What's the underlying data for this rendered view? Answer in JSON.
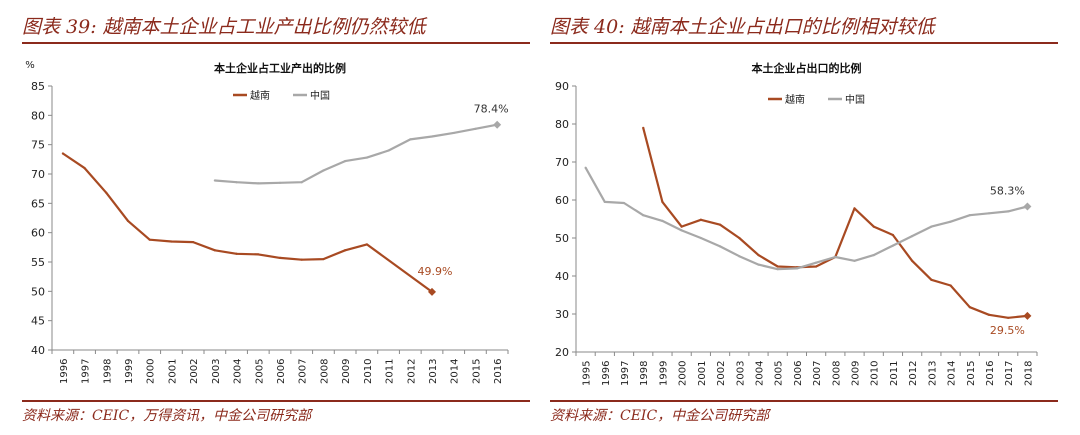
{
  "charts": [
    {
      "figure_title": "图表 39:  越南本土企业占工业产出比例仍然较低",
      "source": "资料来源：CEIC，万得资讯，中金公司研究部"
    },
    {
      "figure_title": "图表 40:  越南本土企业占出口的比例相对较低",
      "source": "资料来源：CEIC，中金公司研究部"
    }
  ],
  "chart_data": [
    {
      "type": "line",
      "title": "本土企业占工业产出的比例",
      "ylabel": "%",
      "xlabel": "",
      "ylim": [
        40,
        85
      ],
      "yticks": [
        40,
        45,
        50,
        55,
        60,
        65,
        70,
        75,
        80,
        85
      ],
      "grid": false,
      "legend_position": "top",
      "x": [
        "1996",
        "1997",
        "1998",
        "1999",
        "2000",
        "2001",
        "2002",
        "2003",
        "2004",
        "2005",
        "2006",
        "2007",
        "2008",
        "2009",
        "2010",
        "2011",
        "2012",
        "2013",
        "2014",
        "2015",
        "2016"
      ],
      "series": [
        {
          "name": "越南",
          "color": "#a84a22",
          "values": [
            73.5,
            71,
            66.8,
            62,
            58.8,
            58.5,
            58.4,
            57,
            56.4,
            56.3,
            55.7,
            55.4,
            55.5,
            57,
            58,
            null,
            null,
            49.9,
            null,
            null,
            null
          ],
          "connect": [
            [
              14,
              17
            ]
          ],
          "end_label": "49.9%",
          "end_index": 17
        },
        {
          "name": "中国",
          "color": "#a8a8a8",
          "values": [
            null,
            null,
            null,
            null,
            null,
            null,
            null,
            68.9,
            68.6,
            68.4,
            68.5,
            68.6,
            70.6,
            72.2,
            72.8,
            74,
            75.9,
            76.4,
            77.0,
            77.7,
            78.4
          ],
          "end_label": "78.4%",
          "end_index": 20
        }
      ]
    },
    {
      "type": "line",
      "title": "本土企业占出口的比例",
      "ylabel": "",
      "xlabel": "",
      "ylim": [
        20,
        90
      ],
      "yticks": [
        20,
        30,
        40,
        50,
        60,
        70,
        80,
        90
      ],
      "grid": false,
      "legend_position": "top",
      "x": [
        "1995",
        "1996",
        "1997",
        "1998",
        "1999",
        "2000",
        "2001",
        "2002",
        "2003",
        "2004",
        "2005",
        "2006",
        "2007",
        "2008",
        "2009",
        "2010",
        "2011",
        "2012",
        "2013",
        "2014",
        "2015",
        "2016",
        "2017",
        "2018"
      ],
      "series": [
        {
          "name": "越南",
          "color": "#a84a22",
          "values": [
            null,
            null,
            null,
            79,
            59.5,
            53,
            54.8,
            53.5,
            50,
            45.5,
            42.5,
            42.3,
            42.5,
            45,
            57.8,
            53,
            50.8,
            44,
            39,
            37.5,
            31.8,
            29.8,
            29.0,
            29.5
          ],
          "end_label": "29.5%",
          "end_index": 23
        },
        {
          "name": "中国",
          "color": "#a8a8a8",
          "values": [
            68.5,
            59.5,
            59.2,
            56,
            54.5,
            52,
            50,
            47.8,
            45.2,
            43,
            41.8,
            42,
            43.5,
            45,
            44,
            45.5,
            48,
            50.5,
            53,
            54.3,
            56,
            56.5,
            57,
            58.3
          ],
          "end_label": "58.3%",
          "end_index": 23
        }
      ]
    }
  ]
}
